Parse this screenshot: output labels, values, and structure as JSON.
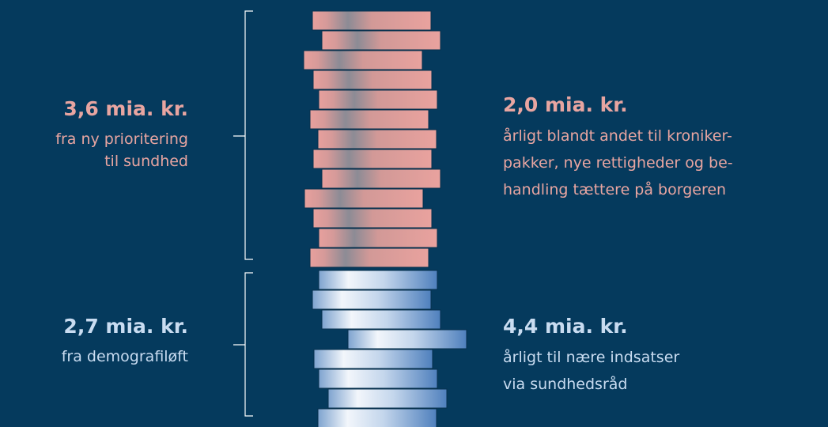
{
  "left_top": {
    "amount": "3,6 mia. kr.",
    "lines": [
      "fra ny prioritering",
      "til sundhed"
    ]
  },
  "left_bottom": {
    "amount": "2,7 mia. kr.",
    "lines": [
      "fra demografiløft"
    ]
  },
  "right_top": {
    "amount": "2,0 mia. kr.",
    "lines": [
      "årligt blandt andet til kroniker-",
      "pakker, nye rettigheder og be-",
      "handling tættere på borgeren"
    ]
  },
  "right_bottom": {
    "amount": "4,4 mia. kr.",
    "lines": [
      "årligt til nære indsatser",
      "via sundhedsråd"
    ]
  }
}
